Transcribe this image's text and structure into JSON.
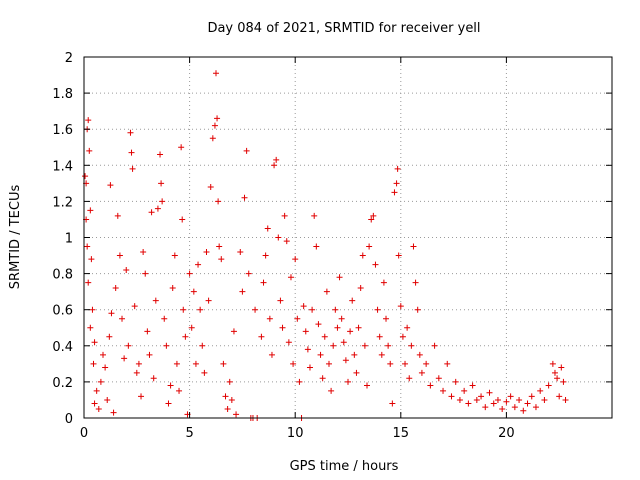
{
  "chart_data": {
    "type": "scatter",
    "title": "Day 084 of 2021, SRMTID for receiver yell",
    "xlabel": "GPS time / hours",
    "ylabel": "SRMTID / TECUs",
    "xlim": [
      0,
      25
    ],
    "ylim": [
      0,
      2
    ],
    "xticks": [
      0,
      5,
      10,
      15,
      20
    ],
    "yticks": [
      0,
      0.2,
      0.4,
      0.6,
      0.8,
      1,
      1.2,
      1.4,
      1.6,
      1.8,
      2
    ],
    "xtick_labels": [
      "0",
      "5",
      "10",
      "15",
      "20"
    ],
    "ytick_labels": [
      "0",
      "0.2",
      "0.4",
      "0.6",
      "0.8",
      "1",
      "1.2",
      "1.4",
      "1.6",
      "1.8",
      "2"
    ],
    "grid": true,
    "marker": "plus",
    "color": "#e00000",
    "series": [
      {
        "name": "SRMTID",
        "points": [
          [
            0.05,
            1.34
          ],
          [
            0.1,
            1.3
          ],
          [
            0.15,
            1.6
          ],
          [
            0.2,
            1.65
          ],
          [
            0.25,
            1.48
          ],
          [
            0.1,
            1.1
          ],
          [
            0.3,
            1.15
          ],
          [
            0.15,
            0.95
          ],
          [
            0.35,
            0.88
          ],
          [
            0.2,
            0.75
          ],
          [
            0.4,
            0.6
          ],
          [
            0.3,
            0.5
          ],
          [
            0.5,
            0.42
          ],
          [
            0.45,
            0.3
          ],
          [
            0.6,
            0.15
          ],
          [
            0.5,
            0.08
          ],
          [
            0.7,
            0.05
          ],
          [
            0.8,
            0.2
          ],
          [
            0.9,
            0.35
          ],
          [
            1.0,
            0.28
          ],
          [
            1.1,
            0.1
          ],
          [
            1.2,
            0.45
          ],
          [
            1.3,
            0.58
          ],
          [
            1.25,
            1.29
          ],
          [
            1.4,
            0.03
          ],
          [
            1.5,
            0.72
          ],
          [
            1.6,
            1.12
          ],
          [
            1.7,
            0.9
          ],
          [
            1.8,
            0.55
          ],
          [
            1.9,
            0.33
          ],
          [
            2.0,
            0.82
          ],
          [
            2.1,
            0.4
          ],
          [
            2.2,
            1.58
          ],
          [
            2.25,
            1.47
          ],
          [
            2.3,
            1.38
          ],
          [
            2.4,
            0.62
          ],
          [
            2.5,
            0.25
          ],
          [
            2.6,
            0.3
          ],
          [
            2.7,
            0.12
          ],
          [
            2.8,
            0.92
          ],
          [
            2.9,
            0.8
          ],
          [
            3.0,
            0.48
          ],
          [
            3.1,
            0.35
          ],
          [
            3.2,
            1.14
          ],
          [
            3.3,
            0.22
          ],
          [
            3.4,
            0.65
          ],
          [
            3.5,
            1.16
          ],
          [
            3.6,
            1.46
          ],
          [
            3.65,
            1.3
          ],
          [
            3.7,
            1.2
          ],
          [
            3.8,
            0.55
          ],
          [
            3.9,
            0.4
          ],
          [
            4.0,
            0.08
          ],
          [
            4.1,
            0.18
          ],
          [
            4.2,
            0.72
          ],
          [
            4.3,
            0.9
          ],
          [
            4.4,
            0.3
          ],
          [
            4.5,
            0.15
          ],
          [
            4.6,
            1.5
          ],
          [
            4.65,
            1.1
          ],
          [
            4.7,
            0.6
          ],
          [
            4.8,
            0.45
          ],
          [
            4.9,
            0.02
          ],
          [
            5.0,
            0.8
          ],
          [
            5.1,
            0.5
          ],
          [
            5.2,
            0.7
          ],
          [
            5.3,
            0.3
          ],
          [
            5.4,
            0.85
          ],
          [
            5.5,
            0.6
          ],
          [
            5.6,
            0.4
          ],
          [
            5.7,
            0.25
          ],
          [
            5.8,
            0.92
          ],
          [
            5.9,
            0.65
          ],
          [
            6.0,
            1.28
          ],
          [
            6.1,
            1.55
          ],
          [
            6.2,
            1.62
          ],
          [
            6.25,
            1.91
          ],
          [
            6.3,
            1.66
          ],
          [
            6.35,
            1.2
          ],
          [
            6.4,
            0.95
          ],
          [
            6.5,
            0.88
          ],
          [
            6.6,
            0.3
          ],
          [
            6.7,
            0.12
          ],
          [
            6.8,
            0.05
          ],
          [
            6.9,
            0.2
          ],
          [
            7.0,
            0.1
          ],
          [
            7.1,
            0.48
          ],
          [
            7.2,
            0.02
          ],
          [
            7.4,
            0.92
          ],
          [
            7.5,
            0.7
          ],
          [
            7.6,
            1.22
          ],
          [
            7.7,
            1.48
          ],
          [
            7.8,
            0.8
          ],
          [
            7.9,
            0.0
          ],
          [
            8.0,
            0.0
          ],
          [
            8.1,
            0.6
          ],
          [
            8.2,
            0.0
          ],
          [
            8.4,
            0.45
          ],
          [
            8.5,
            0.75
          ],
          [
            8.6,
            0.9
          ],
          [
            8.7,
            1.05
          ],
          [
            8.8,
            0.55
          ],
          [
            8.9,
            0.35
          ],
          [
            9.0,
            1.4
          ],
          [
            9.1,
            1.43
          ],
          [
            9.2,
            1.0
          ],
          [
            9.3,
            0.65
          ],
          [
            9.4,
            0.5
          ],
          [
            9.5,
            1.12
          ],
          [
            9.6,
            0.98
          ],
          [
            9.7,
            0.42
          ],
          [
            9.8,
            0.78
          ],
          [
            9.9,
            0.3
          ],
          [
            10.0,
            0.88
          ],
          [
            10.1,
            0.55
          ],
          [
            10.2,
            0.2
          ],
          [
            10.3,
            0.0
          ],
          [
            10.4,
            0.62
          ],
          [
            10.5,
            0.48
          ],
          [
            10.6,
            0.38
          ],
          [
            10.7,
            0.28
          ],
          [
            10.8,
            0.6
          ],
          [
            10.9,
            1.12
          ],
          [
            11.0,
            0.95
          ],
          [
            11.1,
            0.52
          ],
          [
            11.2,
            0.35
          ],
          [
            11.3,
            0.22
          ],
          [
            11.4,
            0.45
          ],
          [
            11.5,
            0.7
          ],
          [
            11.6,
            0.3
          ],
          [
            11.7,
            0.15
          ],
          [
            11.8,
            0.4
          ],
          [
            11.9,
            0.6
          ],
          [
            12.0,
            0.5
          ],
          [
            12.1,
            0.78
          ],
          [
            12.2,
            0.55
          ],
          [
            12.3,
            0.42
          ],
          [
            12.4,
            0.32
          ],
          [
            12.5,
            0.2
          ],
          [
            12.6,
            0.48
          ],
          [
            12.7,
            0.65
          ],
          [
            12.8,
            0.35
          ],
          [
            12.9,
            0.25
          ],
          [
            13.0,
            0.5
          ],
          [
            13.1,
            0.72
          ],
          [
            13.2,
            0.9
          ],
          [
            13.3,
            0.4
          ],
          [
            13.4,
            0.18
          ],
          [
            13.5,
            0.95
          ],
          [
            13.6,
            1.1
          ],
          [
            13.7,
            1.12
          ],
          [
            13.8,
            0.85
          ],
          [
            13.9,
            0.6
          ],
          [
            14.0,
            0.45
          ],
          [
            14.1,
            0.35
          ],
          [
            14.2,
            0.75
          ],
          [
            14.3,
            0.55
          ],
          [
            14.4,
            0.4
          ],
          [
            14.5,
            0.3
          ],
          [
            14.6,
            0.08
          ],
          [
            14.7,
            1.25
          ],
          [
            14.8,
            1.3
          ],
          [
            14.85,
            1.38
          ],
          [
            14.9,
            0.9
          ],
          [
            15.0,
            0.62
          ],
          [
            15.1,
            0.45
          ],
          [
            15.2,
            0.3
          ],
          [
            15.3,
            0.5
          ],
          [
            15.4,
            0.22
          ],
          [
            15.5,
            0.4
          ],
          [
            15.6,
            0.95
          ],
          [
            15.7,
            0.75
          ],
          [
            15.8,
            0.6
          ],
          [
            15.9,
            0.35
          ],
          [
            16.0,
            0.25
          ],
          [
            16.2,
            0.3
          ],
          [
            16.4,
            0.18
          ],
          [
            16.6,
            0.4
          ],
          [
            16.8,
            0.22
          ],
          [
            17.0,
            0.15
          ],
          [
            17.2,
            0.3
          ],
          [
            17.4,
            0.12
          ],
          [
            17.6,
            0.2
          ],
          [
            17.8,
            0.1
          ],
          [
            18.0,
            0.15
          ],
          [
            18.2,
            0.08
          ],
          [
            18.4,
            0.18
          ],
          [
            18.6,
            0.1
          ],
          [
            18.8,
            0.12
          ],
          [
            19.0,
            0.06
          ],
          [
            19.2,
            0.14
          ],
          [
            19.4,
            0.08
          ],
          [
            19.6,
            0.1
          ],
          [
            19.8,
            0.05
          ],
          [
            20.0,
            0.09
          ],
          [
            20.2,
            0.12
          ],
          [
            20.4,
            0.06
          ],
          [
            20.6,
            0.1
          ],
          [
            20.8,
            0.04
          ],
          [
            21.0,
            0.08
          ],
          [
            21.2,
            0.12
          ],
          [
            21.4,
            0.06
          ],
          [
            21.6,
            0.15
          ],
          [
            21.8,
            0.1
          ],
          [
            22.0,
            0.18
          ],
          [
            22.2,
            0.3
          ],
          [
            22.3,
            0.25
          ],
          [
            22.4,
            0.22
          ],
          [
            22.5,
            0.12
          ],
          [
            22.6,
            0.28
          ],
          [
            22.7,
            0.2
          ],
          [
            22.8,
            0.1
          ]
        ]
      }
    ]
  }
}
